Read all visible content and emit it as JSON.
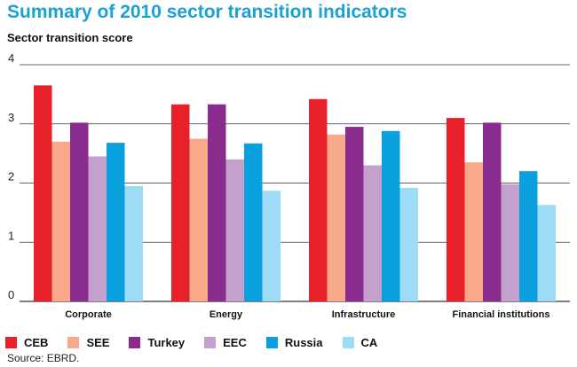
{
  "chart_data": {
    "type": "bar",
    "title": "Summary of 2010 sector transition indicators",
    "ylabel": "Sector transition score",
    "xlabel": "",
    "ylim": [
      0,
      4
    ],
    "yticks": [
      0,
      1,
      2,
      3,
      4
    ],
    "grid": true,
    "legend_position": "bottom",
    "categories": [
      "Corporate",
      "Energy",
      "Infrastructure",
      "Financial institutions"
    ],
    "series": [
      {
        "name": "CEB",
        "color": "#e8202a",
        "values": [
          3.65,
          3.33,
          3.42,
          3.1
        ]
      },
      {
        "name": "SEE",
        "color": "#f8a98a",
        "values": [
          2.7,
          2.75,
          2.82,
          2.35
        ]
      },
      {
        "name": "Turkey",
        "color": "#8a2b8e",
        "values": [
          3.02,
          3.33,
          2.95,
          3.02
        ]
      },
      {
        "name": "EEC",
        "color": "#c4a0cc",
        "values": [
          2.45,
          2.4,
          2.3,
          1.98
        ]
      },
      {
        "name": "Russia",
        "color": "#0aa0de",
        "values": [
          2.68,
          2.67,
          2.88,
          2.2
        ]
      },
      {
        "name": "CA",
        "color": "#9edcf5",
        "values": [
          1.95,
          1.87,
          1.92,
          1.63
        ]
      }
    ]
  },
  "source": "Source: EBRD."
}
